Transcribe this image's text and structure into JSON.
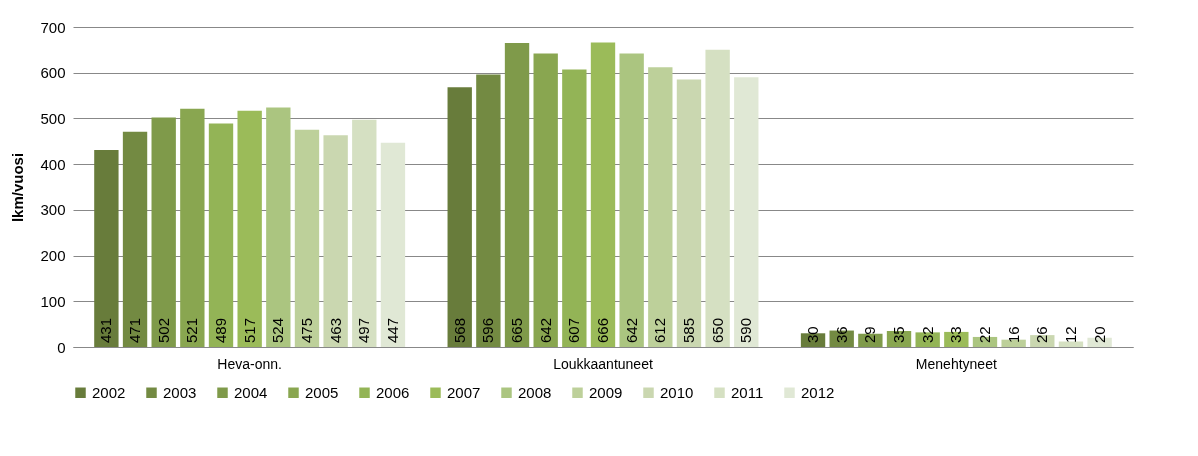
{
  "chart_data": {
    "type": "bar",
    "ylabel": "lkm/vuosi",
    "categories": [
      "Heva-onn.",
      "Loukkaantuneet",
      "Menehtyneet"
    ],
    "ylim": [
      0,
      700
    ],
    "yticks": [
      0,
      100,
      200,
      300,
      400,
      500,
      600,
      700
    ],
    "grid": "y",
    "legend": "bottom",
    "data_labels": true,
    "series": [
      {
        "name": "2002",
        "color": "#687c3b",
        "values": [
          431,
          568,
          30
        ]
      },
      {
        "name": "2003",
        "color": "#738a42",
        "values": [
          471,
          596,
          36
        ]
      },
      {
        "name": "2004",
        "color": "#7f9a4a",
        "values": [
          502,
          665,
          29
        ]
      },
      {
        "name": "2005",
        "color": "#89a650",
        "values": [
          521,
          642,
          35
        ]
      },
      {
        "name": "2006",
        "color": "#93b456",
        "values": [
          489,
          607,
          32
        ]
      },
      {
        "name": "2007",
        "color": "#9bbb59",
        "values": [
          517,
          666,
          33
        ]
      },
      {
        "name": "2008",
        "color": "#abc580",
        "values": [
          524,
          642,
          22
        ]
      },
      {
        "name": "2009",
        "color": "#bdd09a",
        "values": [
          475,
          612,
          16
        ]
      },
      {
        "name": "2010",
        "color": "#cad7b0",
        "values": [
          463,
          585,
          26
        ]
      },
      {
        "name": "2011",
        "color": "#d5e0c2",
        "values": [
          497,
          650,
          12
        ]
      },
      {
        "name": "2012",
        "color": "#e0e8d5",
        "values": [
          447,
          590,
          20
        ]
      }
    ]
  }
}
